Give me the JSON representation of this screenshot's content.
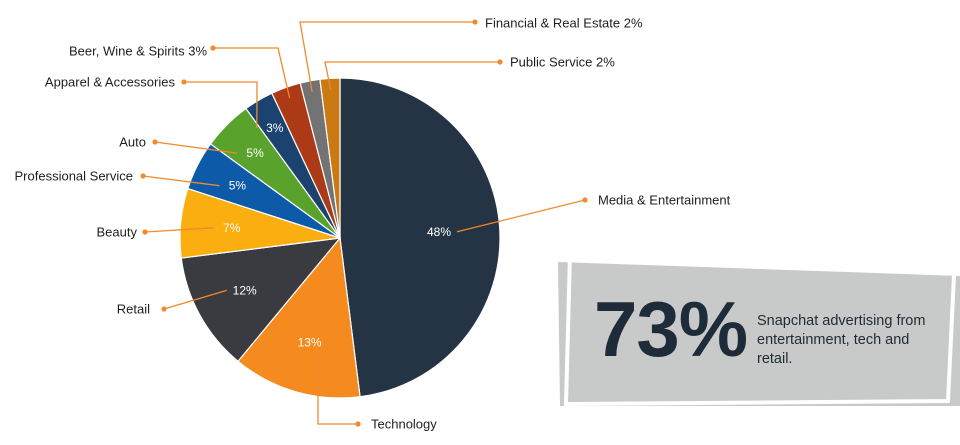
{
  "chart_data": {
    "type": "pie",
    "title": "",
    "slices": [
      {
        "label": "Media & Entertainment",
        "value": 48,
        "display": "48%",
        "color": "#243444"
      },
      {
        "label": "Technology",
        "value": 13,
        "display": "13%",
        "color": "#f58a1f"
      },
      {
        "label": "Retail",
        "value": 12,
        "display": "12%",
        "color": "#3a3b40"
      },
      {
        "label": "Beauty",
        "value": 7,
        "display": "7%",
        "color": "#fbae10"
      },
      {
        "label": "Professional Service",
        "value": 5,
        "display": "5%",
        "color": "#0d5aa8"
      },
      {
        "label": "Auto",
        "value": 5,
        "display": "5%",
        "color": "#59a32d"
      },
      {
        "label": "Apparel & Accessories",
        "value": 3,
        "display": "3%",
        "color": "#1c436f"
      },
      {
        "label": "Beer, Wine & Spirits 3%",
        "value": 3,
        "display": "",
        "color": "#ad3a16"
      },
      {
        "label": "Financial & Real Estate 2%",
        "value": 2,
        "display": "",
        "color": "#737373"
      },
      {
        "label": "Public Service 2%",
        "value": 2,
        "display": "",
        "color": "#c97a12"
      }
    ],
    "leader_color": "#f08a2b"
  },
  "callout": {
    "stat": "73%",
    "text": "Snapchat advertising from entertainment, tech and retail.",
    "box_color": "#c8c9c9",
    "frame_color": "#ffffff"
  }
}
